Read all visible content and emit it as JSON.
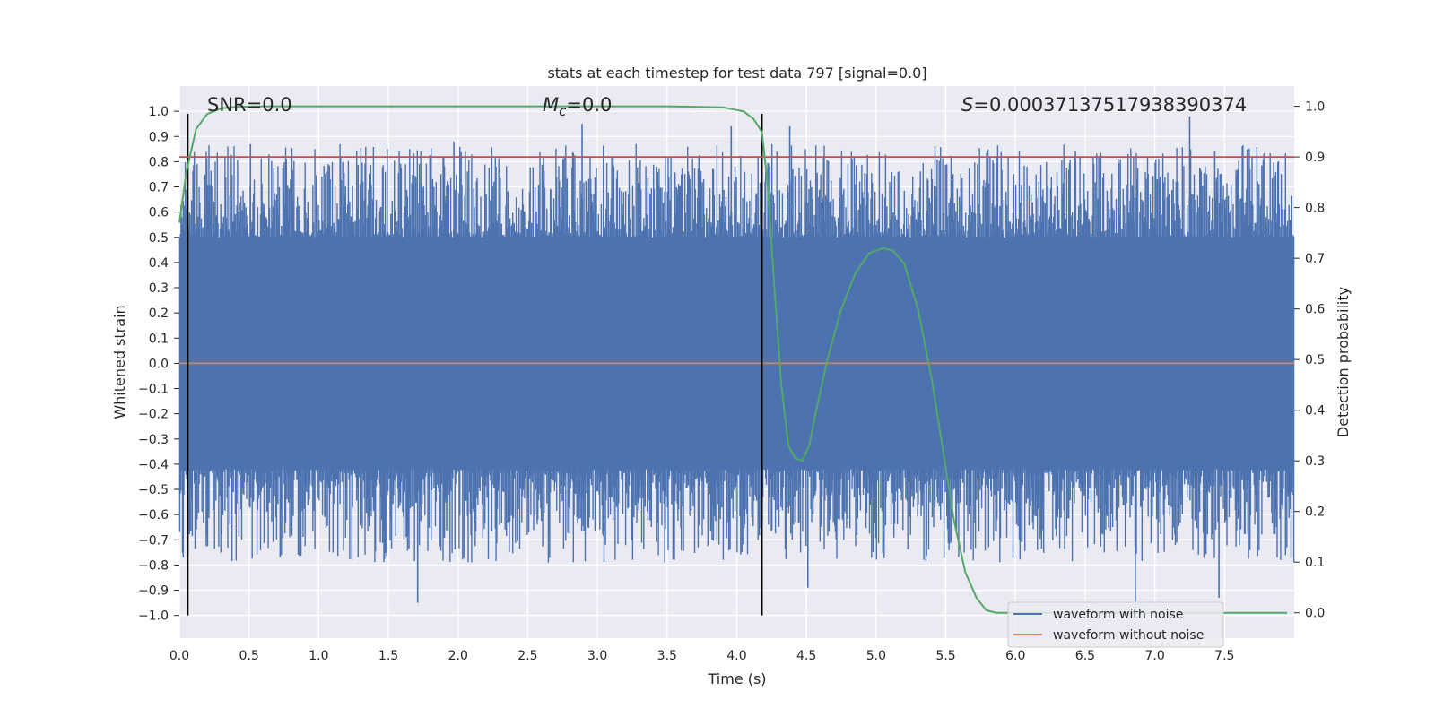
{
  "chart_data": {
    "type": "line",
    "title": "stats at each timestep for test data 797 [signal=0.0]",
    "xlabel": "Time (s)",
    "ylabel": "Whitened strain",
    "ylabel_right": "Detection probability",
    "xlim": [
      0,
      8.0
    ],
    "ylim": [
      -1.09,
      1.1
    ],
    "ylim_right": [
      -0.05,
      1.04
    ],
    "x_ticks": [
      "0.0",
      "0.5",
      "1.0",
      "1.5",
      "2.0",
      "2.5",
      "3.0",
      "3.5",
      "4.0",
      "4.5",
      "5.0",
      "5.5",
      "6.0",
      "6.5",
      "7.0",
      "7.5"
    ],
    "y_ticks": [
      "1.0",
      "0.9",
      "0.8",
      "0.7",
      "0.6",
      "0.5",
      "0.4",
      "0.3",
      "0.2",
      "0.1",
      "0.0",
      "−0.1",
      "−0.2",
      "−0.3",
      "−0.4",
      "−0.5",
      "−0.6",
      "−0.7",
      "−0.8",
      "−0.9",
      "−1.0"
    ],
    "y_ticks_right": [
      "1.0",
      "0.9",
      "0.8",
      "0.7",
      "0.6",
      "0.5",
      "0.4",
      "0.3",
      "0.2",
      "0.1",
      "0.0"
    ],
    "grid": true,
    "annotations": {
      "snr": "SNR=0.0",
      "mc_symbol": "M",
      "mc_sub": "c",
      "mc_value": "=0.0",
      "s_symbol": "S",
      "s_value": "=0.0003713751793839037​4"
    },
    "threshold": {
      "value": 0.9,
      "axis": "right",
      "color": "#c44e52"
    },
    "vertical_markers": [
      0.06,
      4.18
    ],
    "series": [
      {
        "name": "waveform with noise",
        "color": "#4c72b0",
        "kind": "noise",
        "amplitude_envelope": [
          0.5,
          0.99
        ],
        "peaks": [
          {
            "x": 0.51,
            "y": 0.87
          },
          {
            "x": 1.97,
            "y": 0.88
          },
          {
            "x": 2.89,
            "y": 0.95
          },
          {
            "x": 3.96,
            "y": 0.94
          },
          {
            "x": 4.38,
            "y": 0.94
          },
          {
            "x": 6.43,
            "y": 0.84
          },
          {
            "x": 7.25,
            "y": 0.98
          },
          {
            "x": 7.43,
            "y": 0.84
          },
          {
            "x": 1.71,
            "y": -0.95
          },
          {
            "x": 4.51,
            "y": -0.89
          },
          {
            "x": 6.86,
            "y": -0.96
          },
          {
            "x": 7.46,
            "y": -0.93
          }
        ]
      },
      {
        "name": "waveform without noise",
        "color": "#dd8452",
        "x": [
          0,
          8.0
        ],
        "y": [
          0.0,
          0.0
        ]
      },
      {
        "name": "detection probability",
        "color": "#55a868",
        "axis": "right",
        "x": [
          0.0,
          0.05,
          0.12,
          0.2,
          0.3,
          0.4,
          0.6,
          1.0,
          2.0,
          3.0,
          3.5,
          3.9,
          4.05,
          4.12,
          4.18,
          4.22,
          4.27,
          4.32,
          4.37,
          4.42,
          4.47,
          4.52,
          4.57,
          4.65,
          4.75,
          4.85,
          4.95,
          5.05,
          5.12,
          5.2,
          5.3,
          5.4,
          5.48,
          5.56,
          5.64,
          5.72,
          5.79,
          5.86,
          5.95,
          6.2,
          7.0,
          7.95
        ],
        "y": [
          0.77,
          0.87,
          0.955,
          0.985,
          0.996,
          0.999,
          1.0,
          1.0,
          1.0,
          1.0,
          1.0,
          0.998,
          0.99,
          0.975,
          0.95,
          0.85,
          0.64,
          0.45,
          0.33,
          0.305,
          0.3,
          0.33,
          0.4,
          0.5,
          0.6,
          0.67,
          0.71,
          0.72,
          0.715,
          0.69,
          0.6,
          0.46,
          0.32,
          0.18,
          0.08,
          0.03,
          0.005,
          0.0,
          0.0,
          0.0,
          0.0,
          0.0
        ]
      }
    ],
    "legend": {
      "placement": "lower-right",
      "entries": [
        {
          "label": "waveform with noise",
          "color": "#4c72b0"
        },
        {
          "label": "waveform without noise",
          "color": "#dd8452"
        }
      ]
    }
  }
}
